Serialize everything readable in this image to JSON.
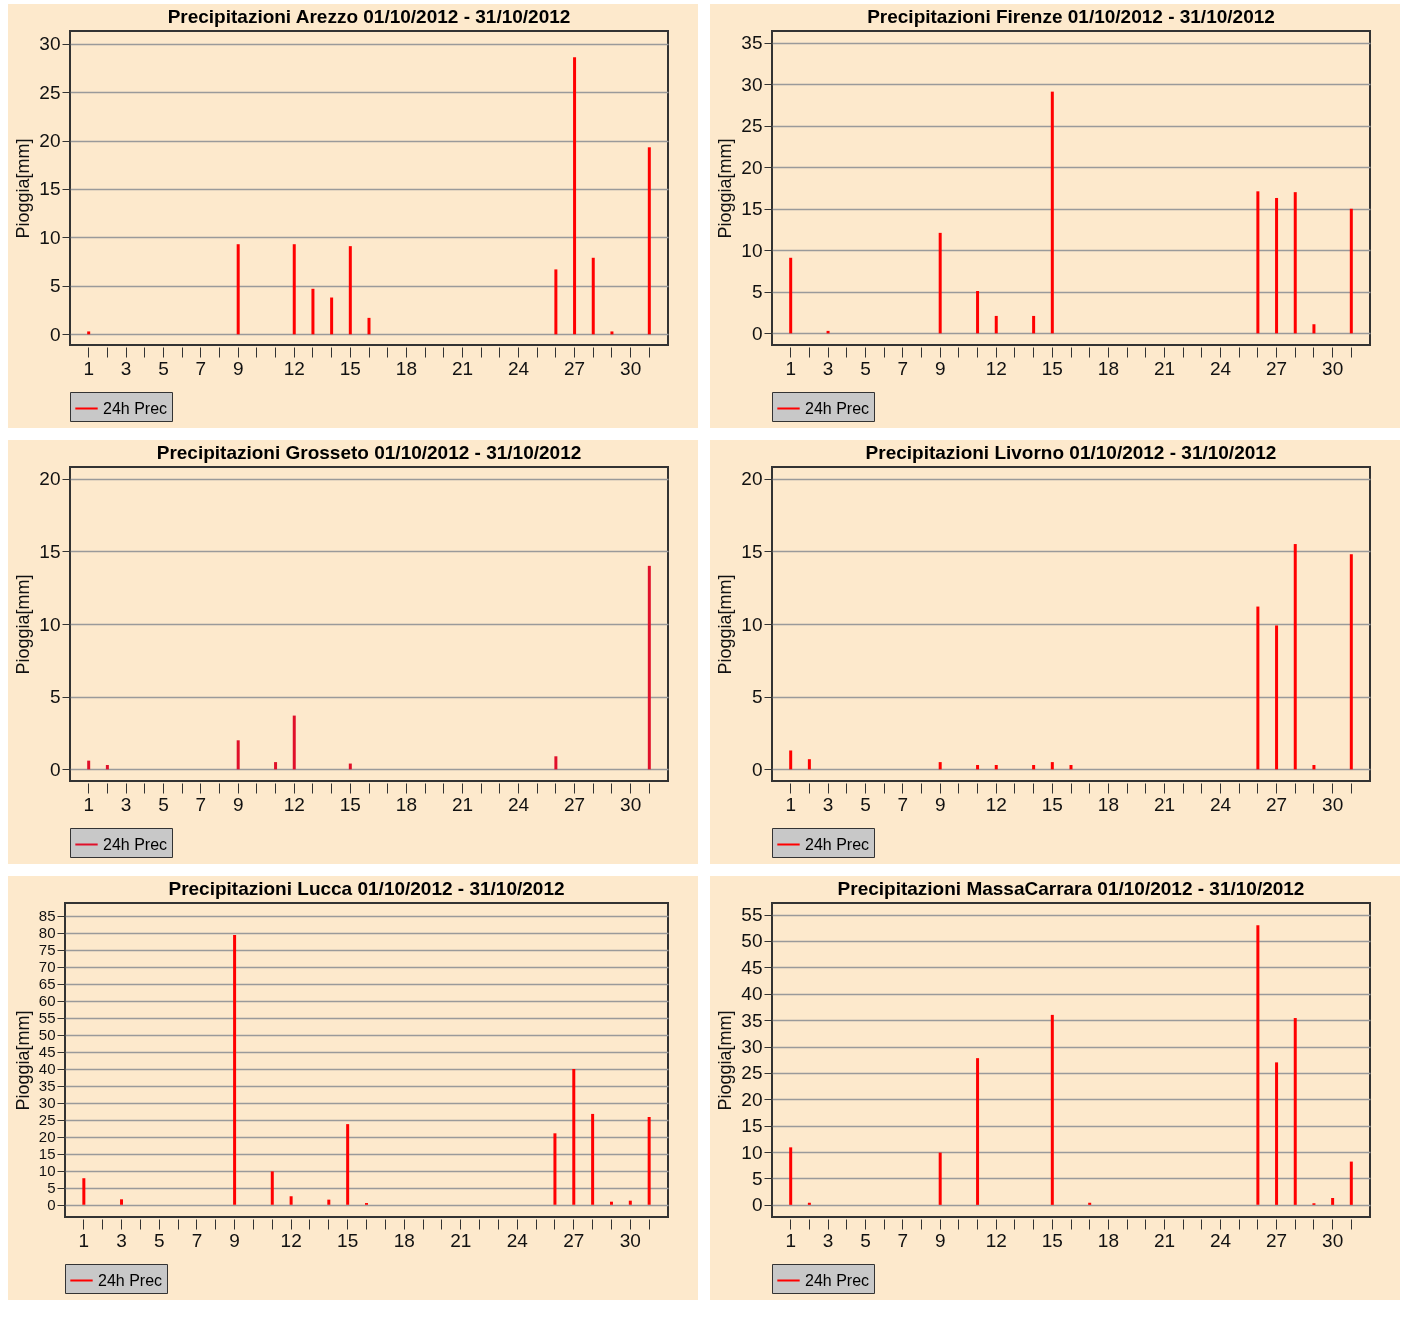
{
  "chart_data": [
    {
      "type": "bar",
      "title": "Precipitazioni Arezzo 01/10/2012 - 31/10/2012",
      "ylabel": "Pioggia[mm]",
      "categories": [
        "1",
        null,
        "3",
        null,
        "5",
        null,
        "7",
        null,
        "9",
        null,
        null,
        "12",
        null,
        null,
        "15",
        null,
        null,
        "18",
        null,
        null,
        "21",
        null,
        null,
        "24",
        null,
        null,
        "27",
        null,
        null,
        "30",
        null
      ],
      "series": [
        {
          "name": "24h Prec",
          "color": "#ff0000",
          "values": [
            0.3,
            0,
            0,
            0,
            0,
            0,
            0,
            0,
            9.3,
            0,
            0,
            9.3,
            4.7,
            3.8,
            9.1,
            1.7,
            0,
            0,
            0,
            null,
            null,
            0,
            0,
            0,
            0,
            6.7,
            28.6,
            7.9,
            0.3,
            0,
            19.3
          ]
        }
      ],
      "ylim": [
        -1.1,
        31.3
      ],
      "yticks": [
        0,
        5,
        10,
        15,
        20,
        25,
        30
      ],
      "grid": "y",
      "legend": "bottom"
    },
    {
      "type": "bar",
      "title": "Precipitazioni Firenze 01/10/2012 - 31/10/2012",
      "ylabel": "Pioggia[mm]",
      "categories": [
        "1",
        null,
        "3",
        null,
        "5",
        null,
        "7",
        null,
        "9",
        null,
        null,
        "12",
        null,
        null,
        "15",
        null,
        null,
        "18",
        null,
        null,
        "21",
        null,
        null,
        "24",
        null,
        null,
        "27",
        null,
        null,
        "30",
        null
      ],
      "series": [
        {
          "name": "24h Prec",
          "color": "#ff0000",
          "values": [
            9.1,
            0,
            0.3,
            0,
            0,
            0,
            0,
            0,
            12.1,
            0,
            5.1,
            2.1,
            0,
            2.1,
            29.1,
            0,
            0,
            0,
            0,
            0,
            0,
            0,
            0,
            0,
            0,
            17.1,
            16.3,
            17.0,
            1.1,
            0,
            15.0
          ]
        }
      ],
      "ylim": [
        -1.4,
        36.4
      ],
      "yticks": [
        0,
        5,
        10,
        15,
        20,
        25,
        30,
        35
      ],
      "grid": "y",
      "legend": "bottom"
    },
    {
      "type": "bar",
      "title": "Precipitazioni Grosseto 01/10/2012 - 31/10/2012",
      "ylabel": "Pioggia[mm]",
      "categories": [
        "1",
        null,
        "3",
        null,
        "5",
        null,
        "7",
        null,
        "9",
        null,
        null,
        "12",
        null,
        null,
        "15",
        null,
        null,
        "18",
        null,
        null,
        "21",
        null,
        null,
        "24",
        null,
        null,
        "27",
        null,
        null,
        "30",
        null
      ],
      "series": [
        {
          "name": "24h Prec",
          "color": "#e0102a",
          "values": [
            0.6,
            0.3,
            0,
            0,
            0,
            0,
            0,
            0,
            2.0,
            0,
            0.5,
            3.7,
            0,
            0,
            0.4,
            0,
            0,
            0,
            0,
            0,
            0,
            0,
            0,
            0,
            0,
            0.9,
            0,
            0,
            0,
            0,
            14.0
          ]
        }
      ],
      "ylim": [
        -0.8,
        20.8
      ],
      "yticks": [
        0,
        5,
        10,
        15,
        20
      ],
      "grid": "y",
      "legend": "bottom"
    },
    {
      "type": "bar",
      "title": "Precipitazioni Livorno 01/10/2012 - 31/10/2012",
      "ylabel": "Pioggia[mm]",
      "categories": [
        "1",
        null,
        "3",
        null,
        "5",
        null,
        "7",
        null,
        "9",
        null,
        null,
        "12",
        null,
        null,
        "15",
        null,
        null,
        "18",
        null,
        null,
        "21",
        null,
        null,
        "24",
        null,
        null,
        "27",
        null,
        null,
        "30",
        null
      ],
      "series": [
        {
          "name": "24h Prec",
          "color": "#ff0000",
          "values": [
            1.3,
            0.7,
            0,
            0,
            0,
            0,
            0,
            0,
            0.5,
            0,
            0.3,
            0.3,
            0,
            0.3,
            0.5,
            0.3,
            0,
            0,
            0,
            0,
            0,
            0,
            0,
            0,
            0,
            11.2,
            9.9,
            15.5,
            0.3,
            0,
            14.8
          ]
        }
      ],
      "ylim": [
        -0.8,
        20.8
      ],
      "yticks": [
        0,
        5,
        10,
        15,
        20
      ],
      "grid": "y",
      "legend": "bottom"
    },
    {
      "type": "bar",
      "title": "Precipitazioni Lucca 01/10/2012 - 31/10/2012",
      "ylabel": "Pioggia[mm]",
      "categories": [
        "1",
        null,
        "3",
        null,
        "5",
        null,
        "7",
        null,
        "9",
        null,
        null,
        "12",
        null,
        null,
        "15",
        null,
        null,
        "18",
        null,
        null,
        "21",
        null,
        null,
        "24",
        null,
        null,
        "27",
        null,
        null,
        "30",
        null
      ],
      "series": [
        {
          "name": "24h Prec",
          "color": "#ff0000",
          "values": [
            7.8,
            0,
            1.6,
            0,
            0,
            0,
            0,
            0,
            79.3,
            0,
            9.8,
            2.5,
            0,
            1.5,
            23.7,
            0.5,
            0,
            0,
            0,
            0,
            0,
            0,
            0,
            0,
            0,
            21.0,
            39.9,
            26.7,
            0.9,
            1.2,
            25.8
          ]
        }
      ],
      "ylim": [
        -3.6,
        88.7
      ],
      "yticks": [
        0,
        5,
        10,
        15,
        20,
        25,
        30,
        35,
        40,
        45,
        50,
        55,
        60,
        65,
        70,
        75,
        80,
        85
      ],
      "grid": "y",
      "legend": "bottom"
    },
    {
      "type": "bar",
      "title": "Precipitazioni MassaCarrara 01/10/2012 - 31/10/2012",
      "ylabel": "Pioggia[mm]",
      "categories": [
        "1",
        null,
        "3",
        null,
        "5",
        null,
        "7",
        null,
        "9",
        null,
        null,
        "12",
        null,
        null,
        "15",
        null,
        null,
        "18",
        null,
        null,
        "21",
        null,
        null,
        "24",
        null,
        null,
        "27",
        null,
        null,
        "30",
        null
      ],
      "series": [
        {
          "name": "24h Prec",
          "color": "#ff0000",
          "values": [
            10.9,
            0.4,
            0,
            0,
            0,
            0,
            0,
            0,
            9.9,
            0,
            27.8,
            0,
            0,
            0,
            36.0,
            0,
            0.4,
            0,
            0,
            0,
            0,
            0,
            0,
            0,
            0,
            53.0,
            27.0,
            35.4,
            0.3,
            1.3,
            8.2
          ]
        }
      ],
      "ylim": [
        -2.3,
        57.2
      ],
      "yticks": [
        0,
        5,
        10,
        15,
        20,
        25,
        30,
        35,
        40,
        45,
        50,
        55
      ],
      "grid": "y",
      "legend": "bottom"
    }
  ]
}
